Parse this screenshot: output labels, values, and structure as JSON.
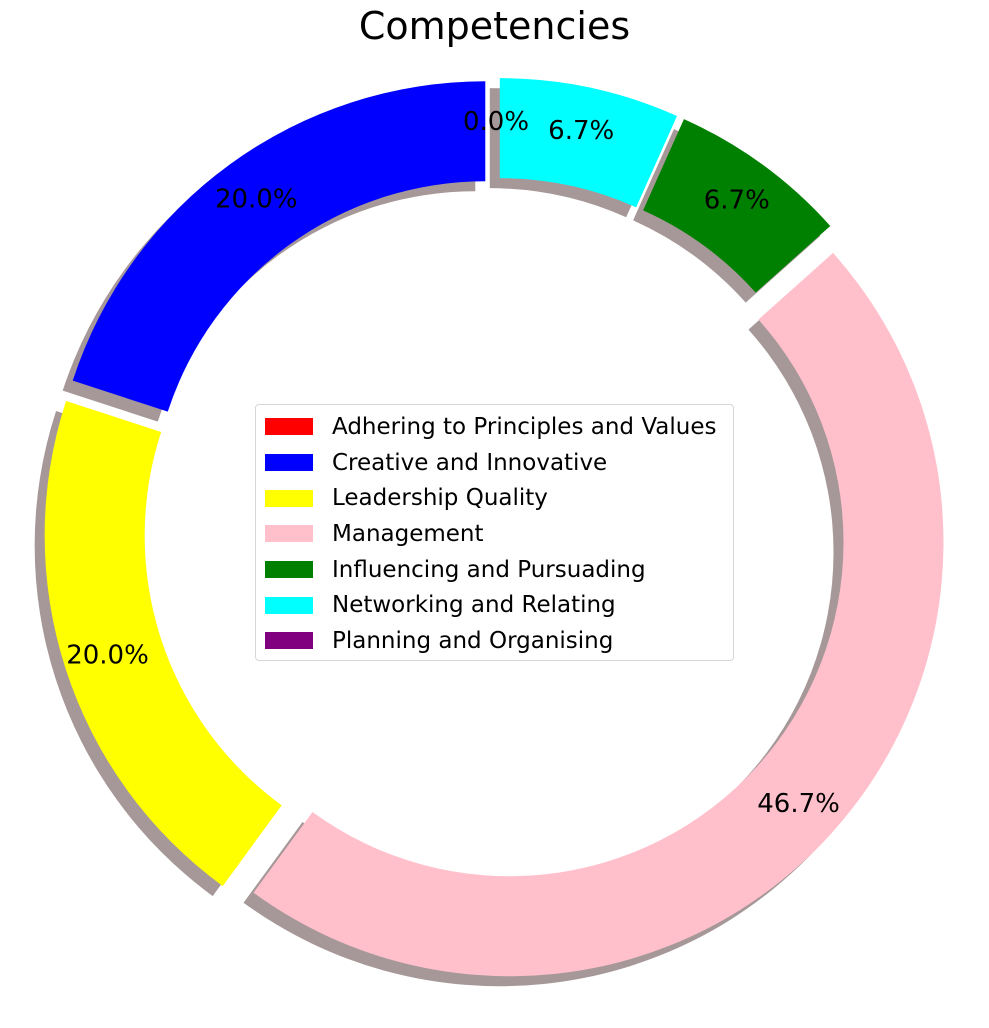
{
  "chart_data": {
    "type": "pie",
    "title": "Competencies",
    "donut": true,
    "shadow": true,
    "legend_position": "center",
    "start_angle": 90,
    "counterclockwise": true,
    "slices": [
      {
        "label": "Adhering to Principles and Values",
        "value": 0.0,
        "pct_label": "0.0%",
        "color": "#ff0000",
        "explode": 0.1
      },
      {
        "label": "Creative and Innovative",
        "value": 20.0,
        "pct_label": "20.0%",
        "color": "#0000ff",
        "explode": 0.1
      },
      {
        "label": "Leadership Quality",
        "value": 20.0,
        "pct_label": "20.0%",
        "color": "#ffff00",
        "explode": 0.1
      },
      {
        "label": "Management",
        "value": 46.7,
        "pct_label": "46.7%",
        "color": "#ffc0cb",
        "explode": 0.1
      },
      {
        "label": "Influencing and Pursuading",
        "value": 6.7,
        "pct_label": "6.7%",
        "color": "#008000",
        "explode": 0.1
      },
      {
        "label": "Networking and Relating",
        "value": 6.7,
        "pct_label": "6.7%",
        "color": "#00ffff",
        "explode": 0.1
      },
      {
        "label": "Planning and Organising",
        "value": 0.0,
        "pct_label": "",
        "color": "#800080",
        "explode": 0.1
      }
    ]
  }
}
